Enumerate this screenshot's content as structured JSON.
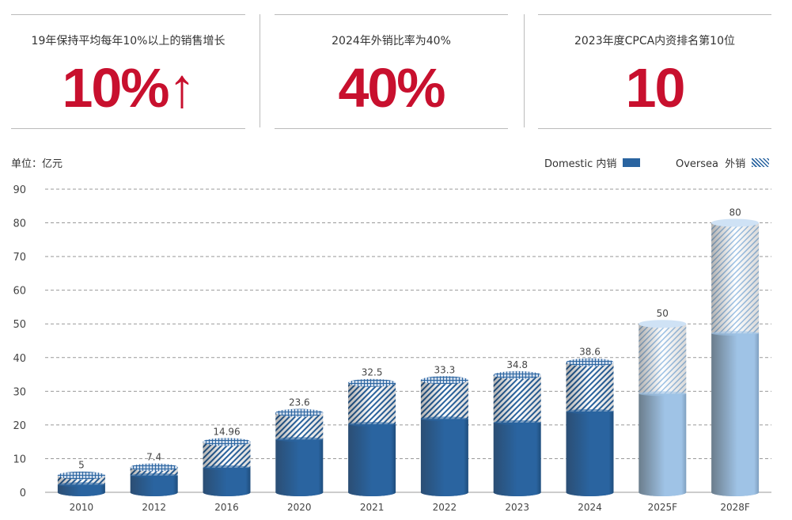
{
  "kpis": [
    {
      "label": "19年保持平均每年10%以上的销售增长",
      "value": "10%↑"
    },
    {
      "label": "2024年外销比率为40%",
      "value": "40%"
    },
    {
      "label": "2023年度CPCA内资排名第10位",
      "value": "10"
    }
  ],
  "colors": {
    "accent": "#c8102e",
    "domestic": "#2a64a0",
    "forecast": "#9fc3e6"
  },
  "chart_data": {
    "type": "bar",
    "stacked": true,
    "style": "cylinder",
    "unit_label": "单位：亿元",
    "categories": [
      "2010",
      "2012",
      "2016",
      "2020",
      "2021",
      "2022",
      "2023",
      "2024",
      "2025F",
      "2028F"
    ],
    "totals": [
      5,
      7.4,
      14.96,
      23.6,
      32.5,
      33.3,
      34.8,
      38.6,
      50,
      80
    ],
    "total_labels": [
      "5",
      "7.4",
      "14.96",
      "23.6",
      "32.5",
      "33.3",
      "34.8",
      "38.6",
      "50",
      "80"
    ],
    "series": [
      {
        "name": "Domestic 内销",
        "values": [
          2.3,
          5,
          7.3,
          15.7,
          20.2,
          21.8,
          20.7,
          24,
          29.3,
          47.2
        ]
      },
      {
        "name": "Oversea  外销",
        "values": [
          2.7,
          2.4,
          7.66,
          7.9,
          12.3,
          11.5,
          14.1,
          14.6,
          20.7,
          32.8
        ]
      }
    ],
    "forecast_categories": [
      "2025F",
      "2028F"
    ],
    "ylim": [
      0,
      90
    ],
    "yticks": [
      "0",
      "10",
      "20",
      "30",
      "40",
      "50",
      "60",
      "70",
      "80",
      "90"
    ],
    "grid": true,
    "legend": "top-right"
  }
}
